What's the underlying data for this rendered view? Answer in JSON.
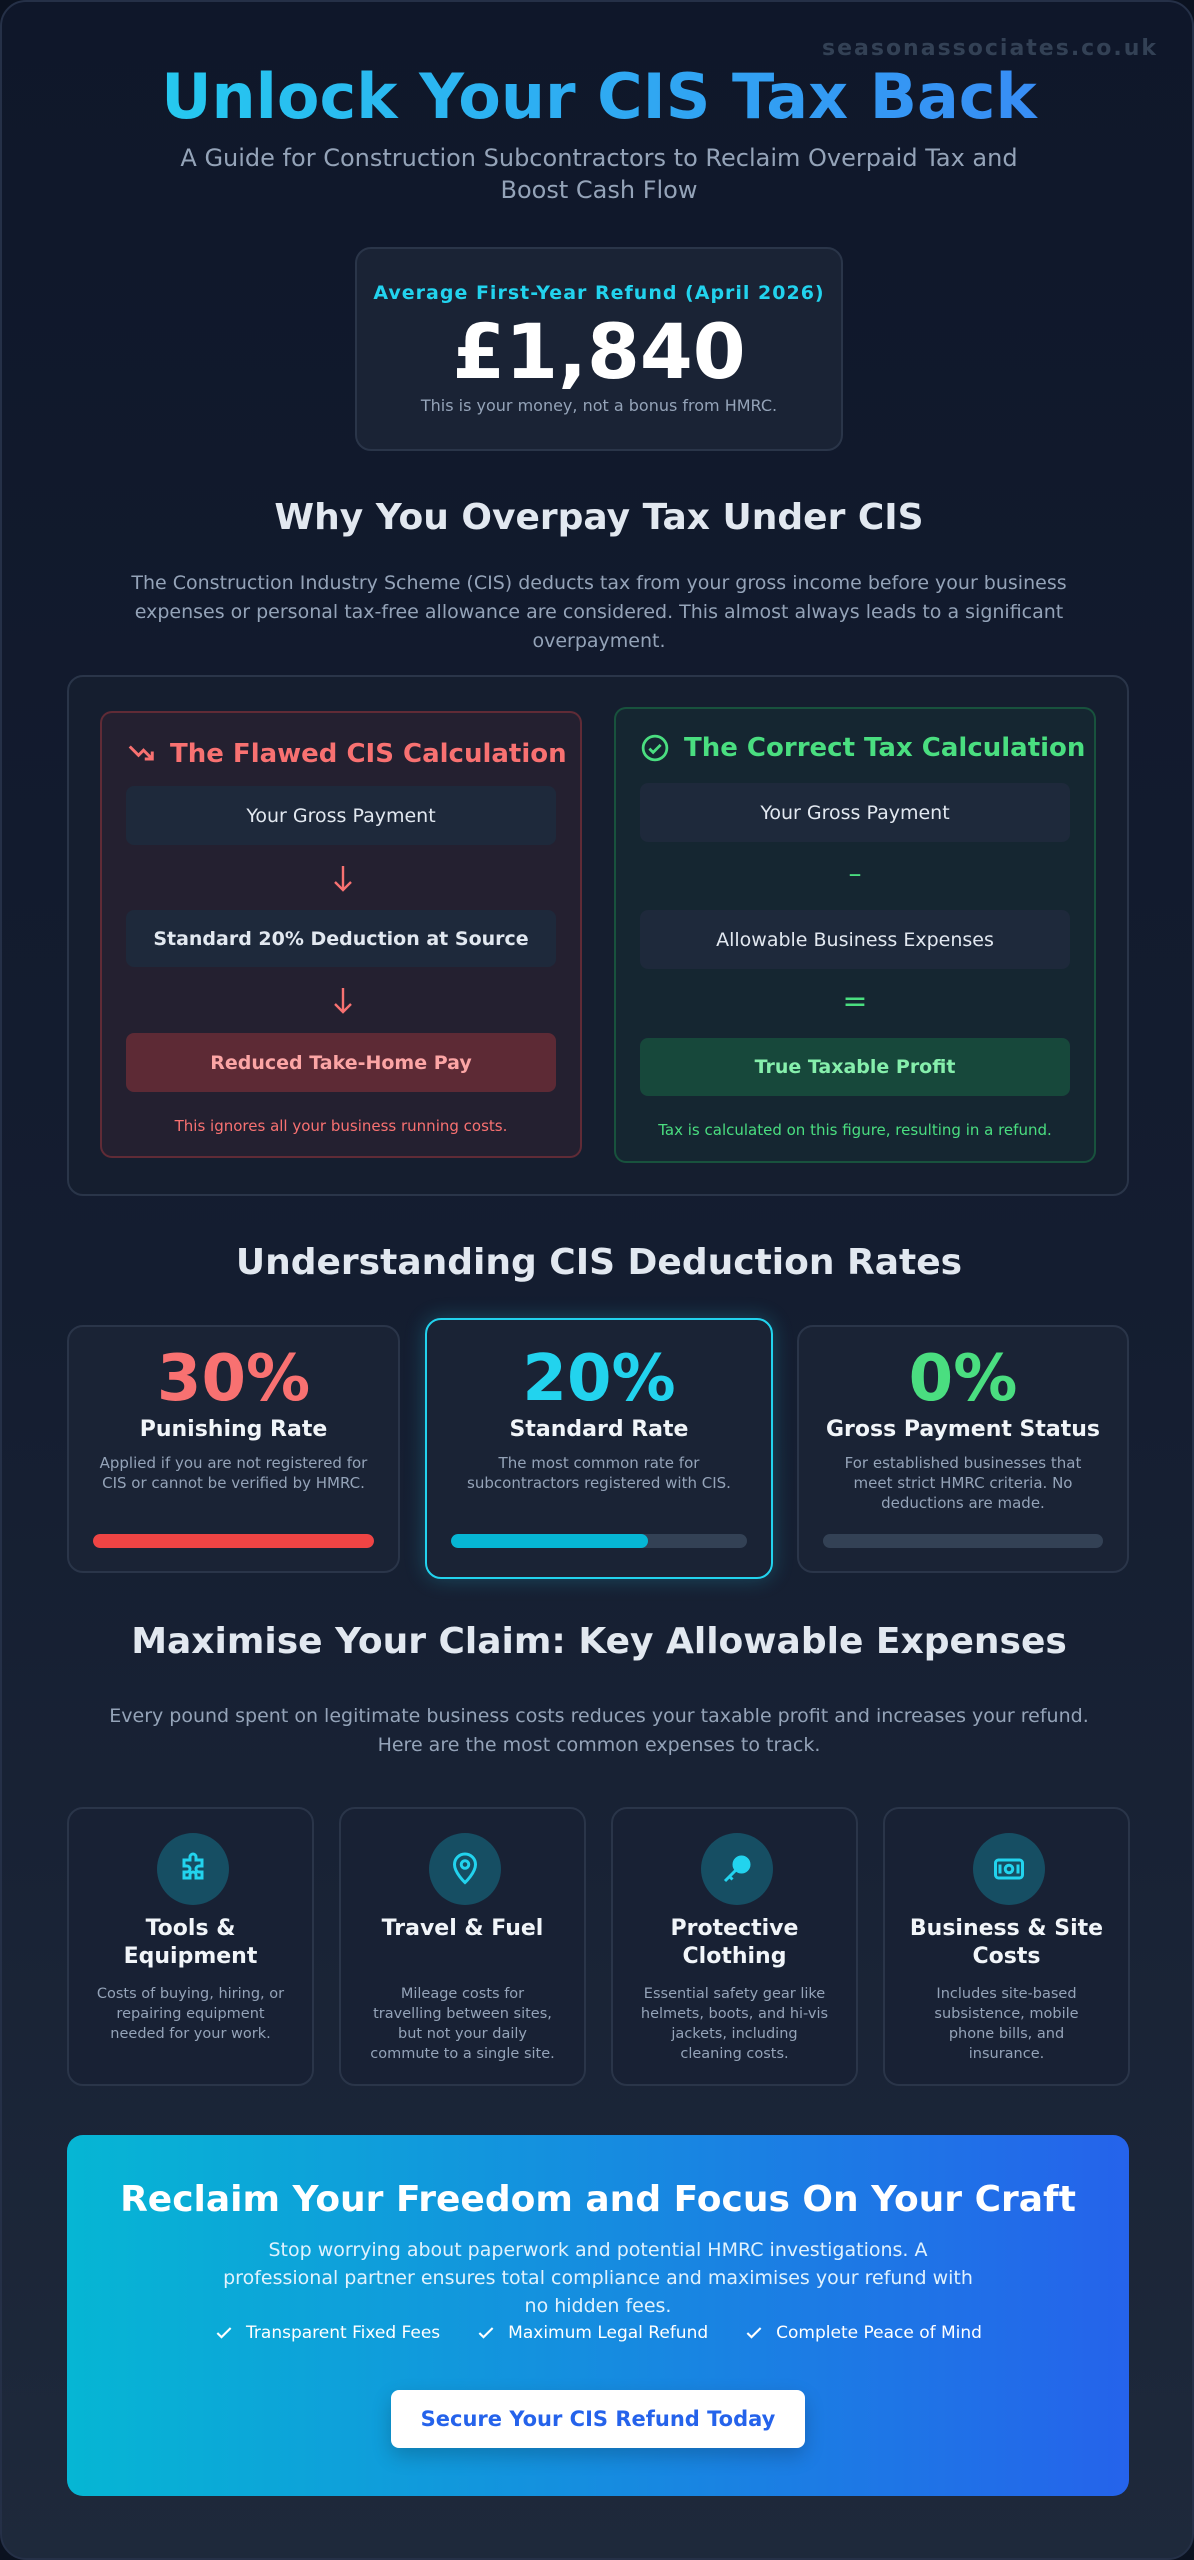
{
  "header": {
    "watermark": "seasonassociates.co.uk",
    "title": "Unlock Your CIS Tax Back",
    "subtitle": "A Guide for Construction Subcontractors to Reclaim Overpaid Tax and Boost Cash Flow"
  },
  "refund": {
    "label": "Average First-Year Refund (April 2026)",
    "amount": "£1,840",
    "note": "This is your money, not a bonus from HMRC."
  },
  "why": {
    "title": "Why You Overpay Tax Under CIS",
    "text": "The Construction Industry Scheme (CIS) deducts tax from your gross income before your business expenses or personal tax-free allowance are considered. This almost always leads to a significant overpayment.",
    "flawed": {
      "title": "The Flawed CIS Calculation",
      "steps": [
        "Your Gross Payment",
        "Standard 20% Deduction at Source"
      ],
      "result": "Reduced Take-Home Pay",
      "note": "This ignores all your business running costs."
    },
    "correct": {
      "title": "The Correct Tax Calculation",
      "steps": [
        "Your Gross Payment",
        "Allowable Business Expenses"
      ],
      "operators": [
        "–",
        "="
      ],
      "result": "True Taxable Profit",
      "note": "Tax is calculated on this figure, resulting in a refund."
    }
  },
  "rates": {
    "title": "Understanding CIS Deduction Rates",
    "items": [
      {
        "rate": "30%",
        "name": "Punishing Rate",
        "text": "Applied if you are not registered for CIS or cannot be verified by HMRC."
      },
      {
        "rate": "20%",
        "name": "Standard Rate",
        "text": "The most common rate for subcontractors registered with CIS."
      },
      {
        "rate": "0%",
        "name": "Gross Payment Status",
        "text": "For established businesses that meet strict HMRC criteria. No deductions are made."
      }
    ]
  },
  "expenses": {
    "title": "Maximise Your Claim: Key Allowable Expenses",
    "text": "Every pound spent on legitimate business costs reduces your taxable profit and increases your refund. Here are the most common expenses to track.",
    "items": [
      {
        "name": "Tools & Equipment",
        "text": "Costs of buying, hiring, or repairing equipment needed for your work."
      },
      {
        "name": "Travel & Fuel",
        "text": "Mileage costs for travelling between sites, but not your daily commute to a single site."
      },
      {
        "name": "Protective Clothing",
        "text": "Essential safety gear like helmets, boots, and hi-vis jackets, including cleaning costs."
      },
      {
        "name": "Business & Site Costs",
        "text": "Includes site-based subsistence, mobile phone bills, and insurance."
      }
    ]
  },
  "cta": {
    "title": "Reclaim Your Freedom and Focus On Your Craft",
    "text": "Stop worrying about paperwork and potential HMRC investigations. A professional partner ensures total compliance and maximises your refund with no hidden fees.",
    "features": [
      "Transparent Fixed Fees",
      "Maximum Legal Refund",
      "Complete Peace of Mind"
    ],
    "button": "Secure Your CIS Refund Today"
  }
}
